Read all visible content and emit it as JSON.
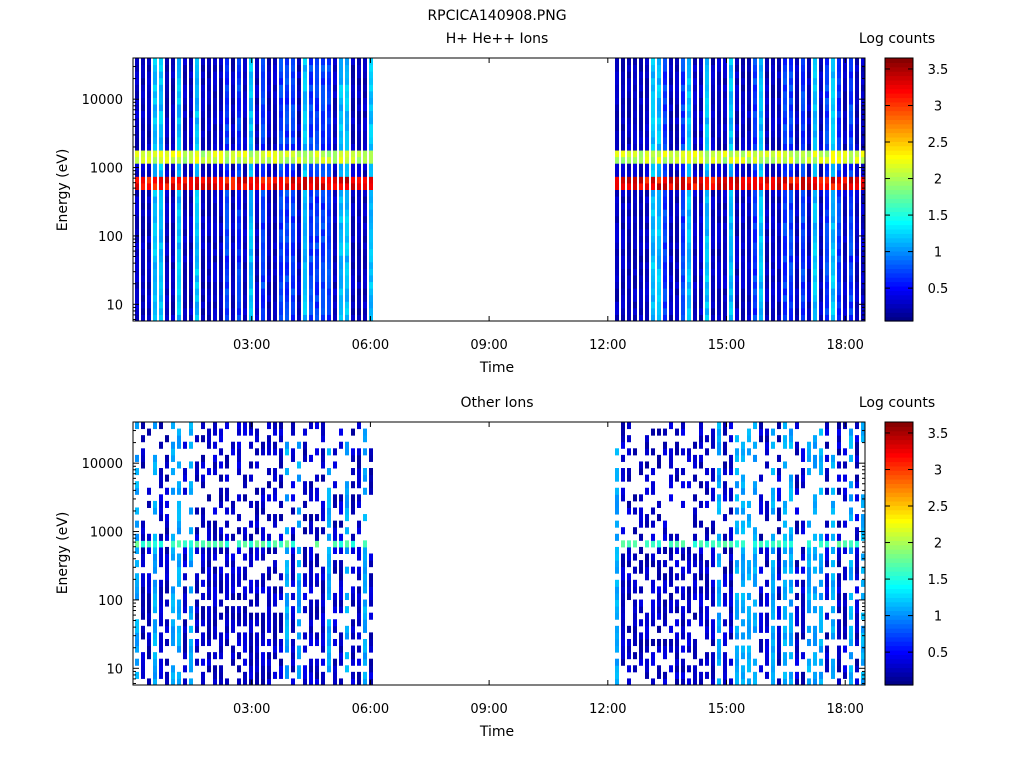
{
  "figure_title": "RPCICA140908.PNG",
  "chart_data": [
    {
      "type": "heatmap",
      "title": "H+ He++ Ions",
      "xlabel": "Time",
      "ylabel": "Energy (eV)",
      "x_unit": "hours",
      "xlim": [
        0.0,
        18.5
      ],
      "x_ticks": [
        3,
        6,
        9,
        12,
        15,
        18
      ],
      "x_tick_labels": [
        "03:00",
        "06:00",
        "09:00",
        "12:00",
        "15:00",
        "18:00"
      ],
      "yscale": "log",
      "ylim": [
        5.7,
        40000
      ],
      "y_ticks": [
        10,
        100,
        1000,
        10000
      ],
      "y_tick_labels": [
        "10",
        "100",
        "1000",
        "10000"
      ],
      "data_gap_hours": [
        6.1,
        12.1
      ],
      "colorbar": {
        "label": "Log counts",
        "range": [
          0.05,
          3.65
        ],
        "ticks": [
          0.5,
          1,
          1.5,
          2,
          2.5,
          3,
          3.5
        ],
        "tick_labels": [
          "0.5",
          "1",
          "1.5",
          "2",
          "2.5",
          "3",
          "3.5"
        ],
        "colormap": "jet"
      },
      "features": [
        {
          "energy_eV": 650,
          "log_counts": 3.4,
          "description_label": ""
        },
        {
          "energy_eV": 1400,
          "log_counts": 2.2,
          "description_label": ""
        }
      ]
    },
    {
      "type": "heatmap",
      "title": "Other Ions",
      "xlabel": "Time",
      "ylabel": "Energy (eV)",
      "x_unit": "hours",
      "xlim": [
        0.0,
        18.5
      ],
      "x_ticks": [
        3,
        6,
        9,
        12,
        15,
        18
      ],
      "x_tick_labels": [
        "03:00",
        "06:00",
        "09:00",
        "12:00",
        "15:00",
        "18:00"
      ],
      "yscale": "log",
      "ylim": [
        5.7,
        40000
      ],
      "y_ticks": [
        10,
        100,
        1000,
        10000
      ],
      "y_tick_labels": [
        "10",
        "100",
        "1000",
        "10000"
      ],
      "data_gap_hours": [
        6.1,
        12.1
      ],
      "colorbar": {
        "label": "Log counts",
        "range": [
          0.05,
          3.65
        ],
        "ticks": [
          0.5,
          1,
          1.5,
          2,
          2.5,
          3,
          3.5
        ],
        "tick_labels": [
          "0.5",
          "1",
          "1.5",
          "2",
          "2.5",
          "3",
          "3.5"
        ],
        "colormap": "jet"
      },
      "features": [
        {
          "energy_eV": 650,
          "log_counts": 1.7,
          "description_label": ""
        }
      ]
    }
  ]
}
